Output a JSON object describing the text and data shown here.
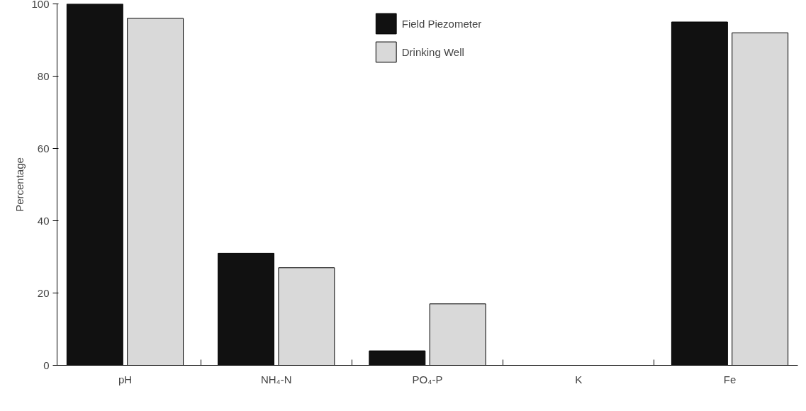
{
  "chart_data": {
    "type": "bar",
    "ylabel": "Percentage",
    "categories": [
      "pH",
      "NH₄-N",
      "PO₄-P",
      "K",
      "Fe"
    ],
    "series": [
      {
        "name": "Field Piezometer",
        "color": "#111111",
        "values": [
          100,
          31,
          4,
          null,
          95
        ]
      },
      {
        "name": "Drinking Well",
        "color": "#d9d9d9",
        "values": [
          96,
          27,
          17,
          null,
          92
        ]
      }
    ],
    "ylim": [
      0,
      100
    ],
    "yticks": [
      0,
      20,
      40,
      60,
      80,
      100
    ],
    "grid": false,
    "legend": "top"
  }
}
